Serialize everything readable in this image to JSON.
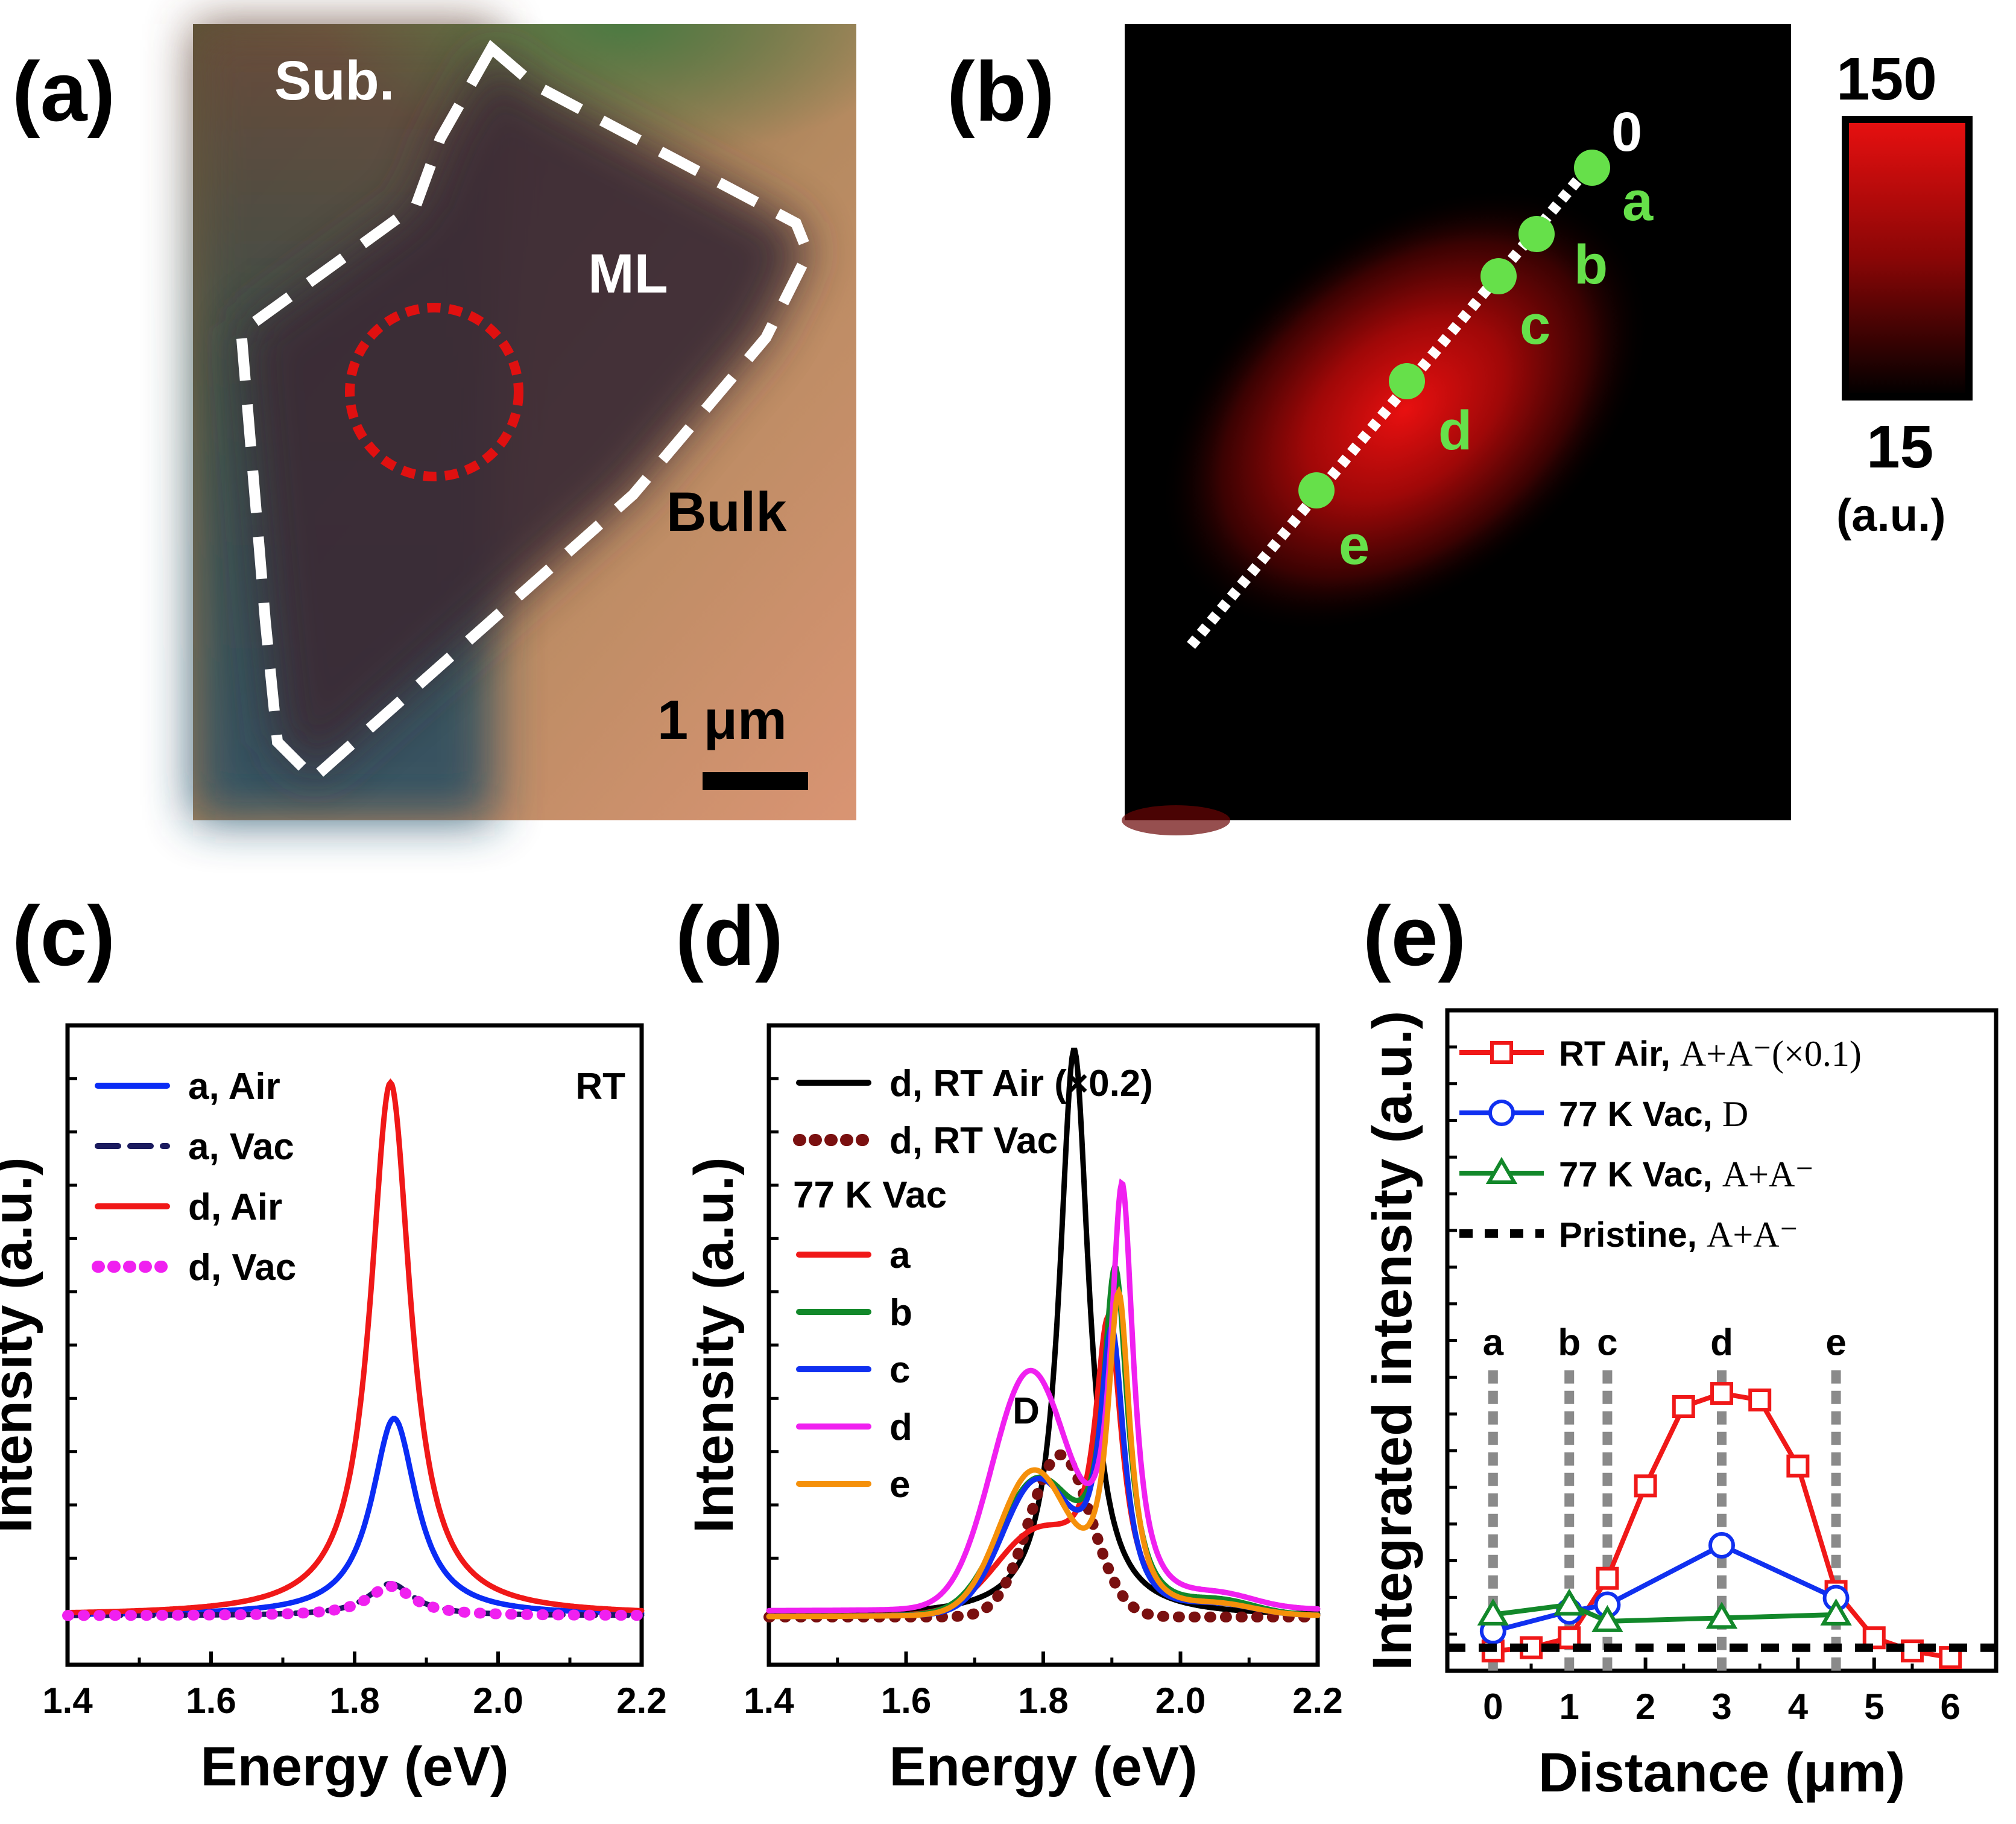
{
  "panel_labels": {
    "a": "(a)",
    "b": "(b)",
    "c": "(c)",
    "d": "(d)",
    "e": "(e)"
  },
  "panel_a": {
    "labels": {
      "sub": "Sub.",
      "ml": "ML",
      "bulk": "Bulk"
    },
    "scale_bar": "1 μm",
    "colors": {
      "ml_region": "#3a2a30",
      "outline": "#ffffff",
      "laser_spot": "#e01010",
      "bulk": "#c48a6a",
      "substrate": "#5a4a3a"
    }
  },
  "panel_b": {
    "point_labels": [
      "0",
      "a",
      "b",
      "c",
      "d",
      "e"
    ],
    "colorbar": {
      "max": "150",
      "min": "15",
      "unit": "(a.u.)"
    },
    "colors": {
      "points": "#66e04a",
      "map_high": "#e81010",
      "map_low": "#000000"
    }
  },
  "chart_data": [
    {
      "type": "line",
      "panel": "c",
      "xlabel": "Energy (eV)",
      "ylabel": "Intensity (a.u.)",
      "xlim": [
        1.4,
        2.2
      ],
      "xticks": [
        "1.4",
        "1.6",
        "1.8",
        "2.0",
        "2.2"
      ],
      "annotation": "RT",
      "series": [
        {
          "name": "a, Air",
          "style": "solid",
          "color": "#0a2cf5",
          "peak_x": 1.855,
          "peak_y": 0.37
        },
        {
          "name": "a, Vac",
          "style": "dashed",
          "color": "#1a1a5e",
          "peak_x": 1.85,
          "peak_y": 0.06
        },
        {
          "name": "d, Air",
          "style": "solid",
          "color": "#f01818",
          "peak_x": 1.85,
          "peak_y": 1.0
        },
        {
          "name": "d, Vac",
          "style": "dotted",
          "color": "#f020f0",
          "peak_x": 1.85,
          "peak_y": 0.055
        }
      ]
    },
    {
      "type": "line",
      "panel": "d",
      "xlabel": "Energy (eV)",
      "ylabel": "Intensity (a.u.)",
      "xlim": [
        1.4,
        2.2
      ],
      "xticks": [
        "1.4",
        "1.6",
        "1.8",
        "2.0",
        "2.2"
      ],
      "legend_group_title": "77 K Vac",
      "annotation": "D",
      "series": [
        {
          "name": "d, RT Air (×0.2)",
          "style": "solid",
          "color": "#000000",
          "peak_x": 1.845,
          "peak_y": 1.0
        },
        {
          "name": "d, RT Vac",
          "style": "dotted",
          "color": "#7a1010",
          "peak_x": 1.825,
          "peak_y": 0.3
        },
        {
          "name": "a",
          "style": "solid",
          "color": "#f01818",
          "peak_x": 1.895,
          "peak_y": 0.5
        },
        {
          "name": "b",
          "style": "solid",
          "color": "#12882a",
          "peak_x": 1.905,
          "peak_y": 0.6
        },
        {
          "name": "c",
          "style": "solid",
          "color": "#1030f0",
          "peak_x": 1.9,
          "peak_y": 0.5
        },
        {
          "name": "d",
          "style": "solid",
          "color": "#f020f0",
          "peak_x": 1.915,
          "peak_y": 0.74
        },
        {
          "name": "e",
          "style": "solid",
          "color": "#f5900a",
          "peak_x": 1.91,
          "peak_y": 0.57
        }
      ]
    },
    {
      "type": "line",
      "panel": "e",
      "xlabel": "Distance (μm)",
      "ylabel": "Integrated intensity (a.u.)",
      "xlim": [
        -0.6,
        6.6
      ],
      "ylim": [
        0,
        10
      ],
      "xticks": [
        "0",
        "1",
        "2",
        "3",
        "4",
        "5",
        "6"
      ],
      "point_markers": [
        {
          "label": "a",
          "x": 0
        },
        {
          "label": "b",
          "x": 1
        },
        {
          "label": "c",
          "x": 1.5
        },
        {
          "label": "d",
          "x": 3
        },
        {
          "label": "e",
          "x": 4.5
        }
      ],
      "series": [
        {
          "name": "RT Air, ",
          "formula": "A+A⁻(×0.1)",
          "marker": "square",
          "color": "#f01818",
          "x": [
            0,
            0.5,
            1,
            1.5,
            2,
            2.5,
            3,
            3.5,
            4,
            4.5,
            5,
            5.5,
            6
          ],
          "y": [
            0.3,
            0.35,
            0.5,
            1.4,
            2.8,
            4.0,
            4.2,
            4.1,
            3.1,
            1.2,
            0.5,
            0.3,
            0.2
          ]
        },
        {
          "name": "77 K Vac, ",
          "formula": "D",
          "marker": "circle",
          "color": "#1030f0",
          "x": [
            0,
            1,
            1.5,
            3,
            4.5
          ],
          "y": [
            0.6,
            0.9,
            1.0,
            1.9,
            1.1
          ]
        },
        {
          "name": "77 K Vac, ",
          "formula": "A+A⁻",
          "marker": "triangle",
          "color": "#12882a",
          "x": [
            0,
            1,
            1.5,
            3,
            4.5
          ],
          "y": [
            0.85,
            1.0,
            0.75,
            0.8,
            0.85
          ]
        },
        {
          "name": "Pristine, ",
          "formula": "A+A⁻",
          "marker": "none",
          "style": "dashed",
          "color": "#000000",
          "x": [
            -0.6,
            6.6
          ],
          "y": [
            0.35,
            0.35
          ]
        }
      ]
    }
  ]
}
